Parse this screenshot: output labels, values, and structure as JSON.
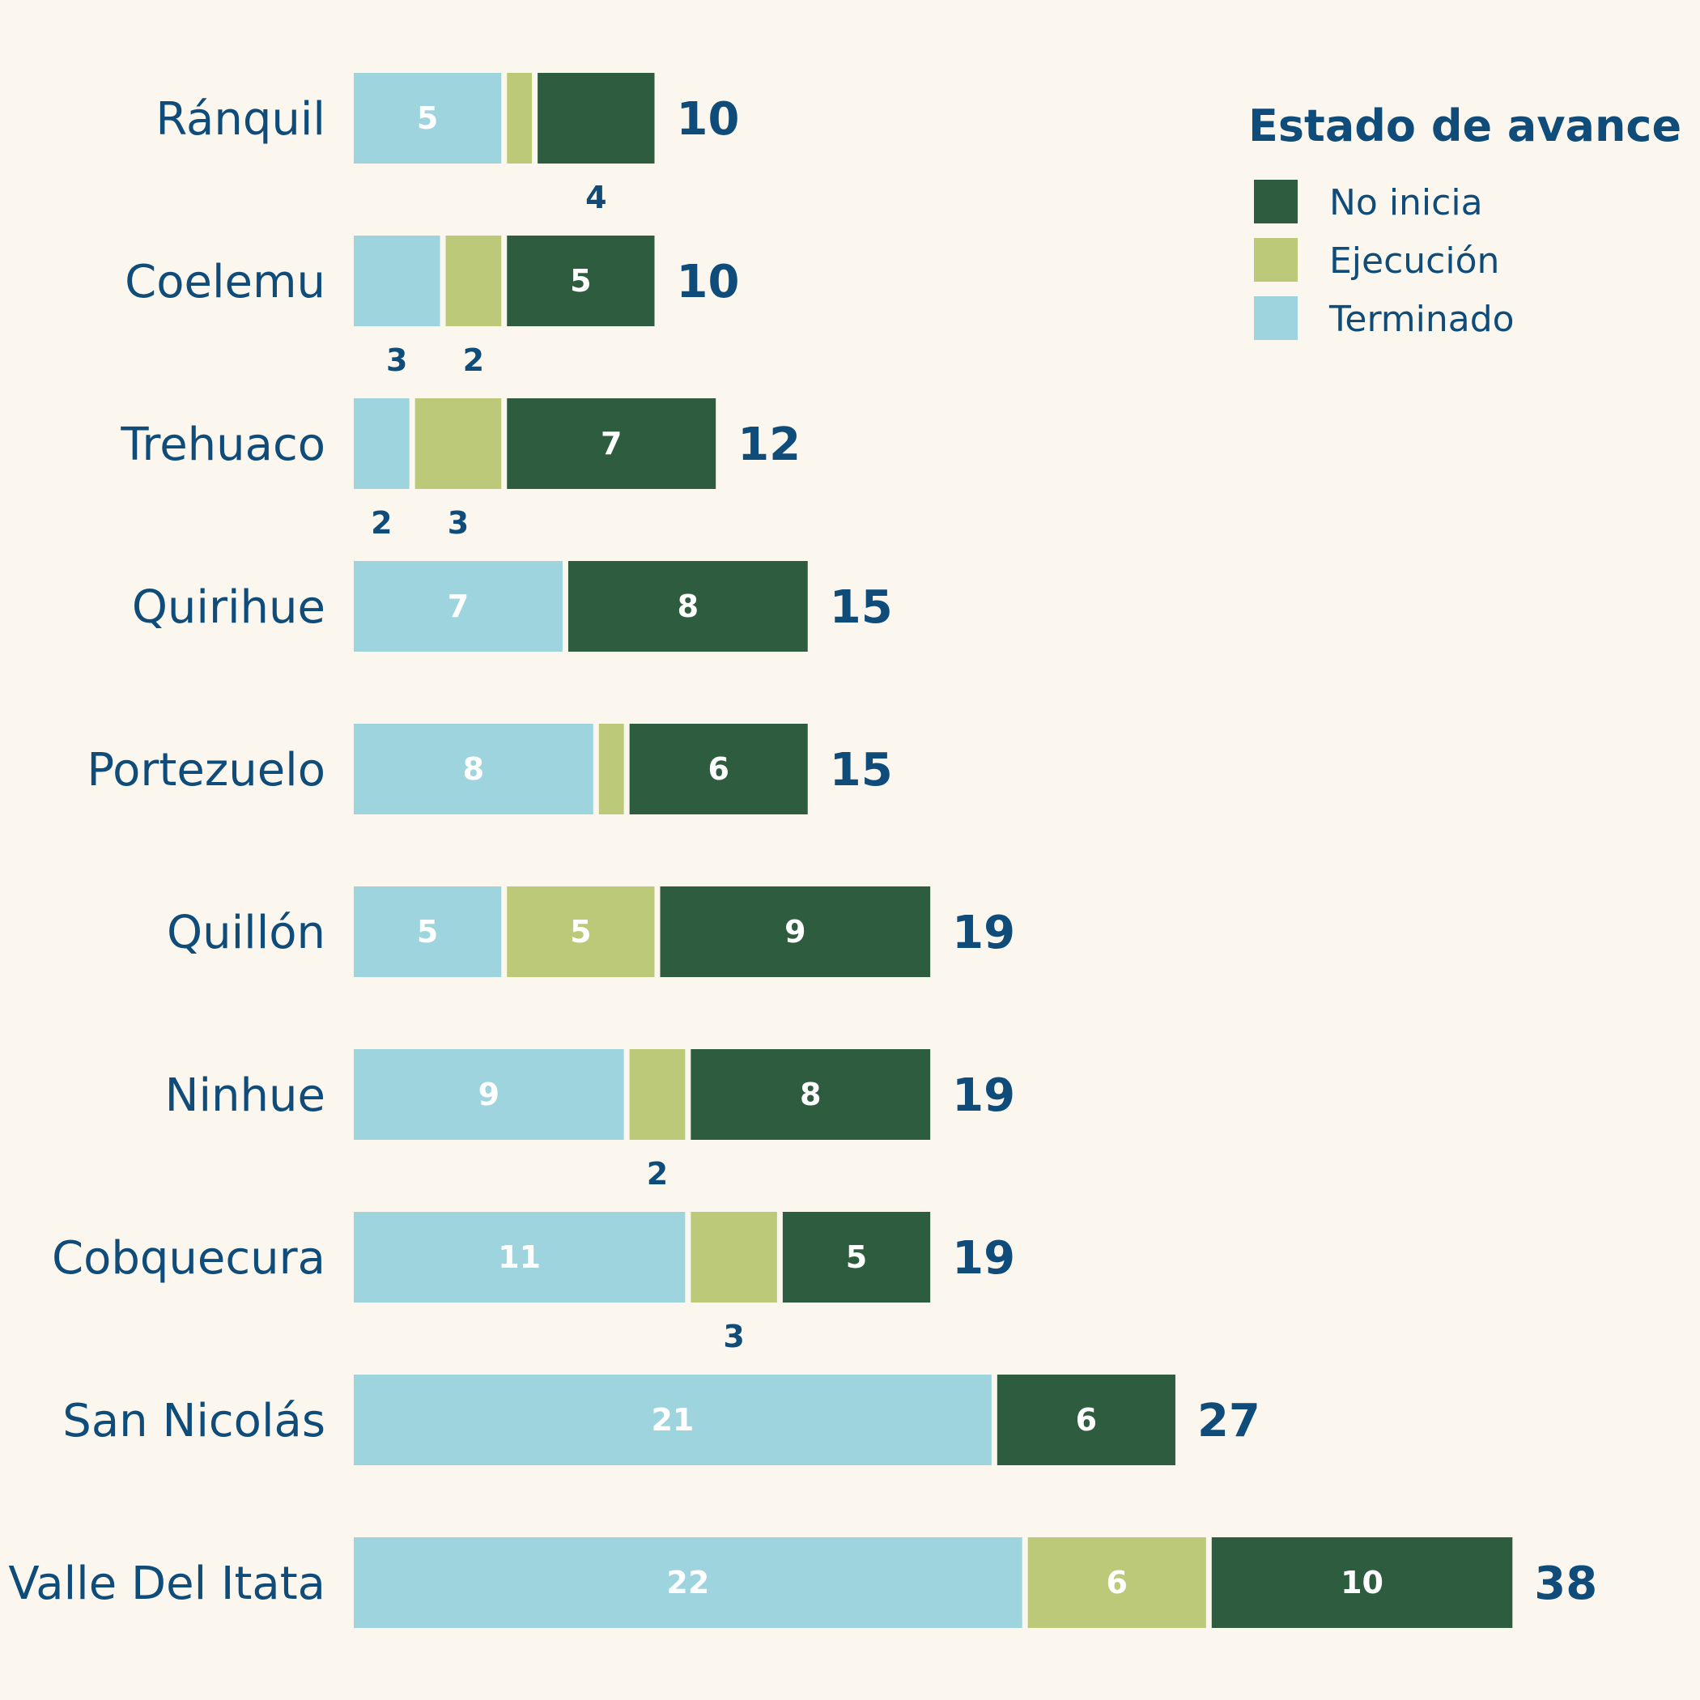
{
  "chart_data": {
    "type": "bar",
    "orientation": "horizontal",
    "stacked": true,
    "categories": [
      "Ránquil",
      "Coelemu",
      "Trehuaco",
      "Quirihue",
      "Portezuelo",
      "Quillón",
      "Ninhue",
      "Cobquecura",
      "San Nicolás",
      "Valle Del Itata"
    ],
    "series": [
      {
        "name": "Terminado",
        "color": "#9dd4de",
        "values": [
          5,
          3,
          2,
          7,
          8,
          5,
          9,
          11,
          21,
          22
        ]
      },
      {
        "name": "Ejecución",
        "color": "#bcc978",
        "values": [
          1,
          2,
          3,
          0,
          1,
          5,
          2,
          3,
          0,
          6
        ]
      },
      {
        "name": "No inicia",
        "color": "#2e5c3e",
        "values": [
          4,
          5,
          7,
          8,
          6,
          9,
          8,
          5,
          6,
          10
        ]
      }
    ],
    "totals": [
      10,
      10,
      12,
      15,
      15,
      19,
      19,
      19,
      27,
      38
    ],
    "legend": {
      "title": "Estado de avance",
      "items": [
        "No inicia",
        "Ejecución",
        "Terminado"
      ],
      "placement": "top-right"
    },
    "grid": false,
    "xaxis_visible": false
  }
}
